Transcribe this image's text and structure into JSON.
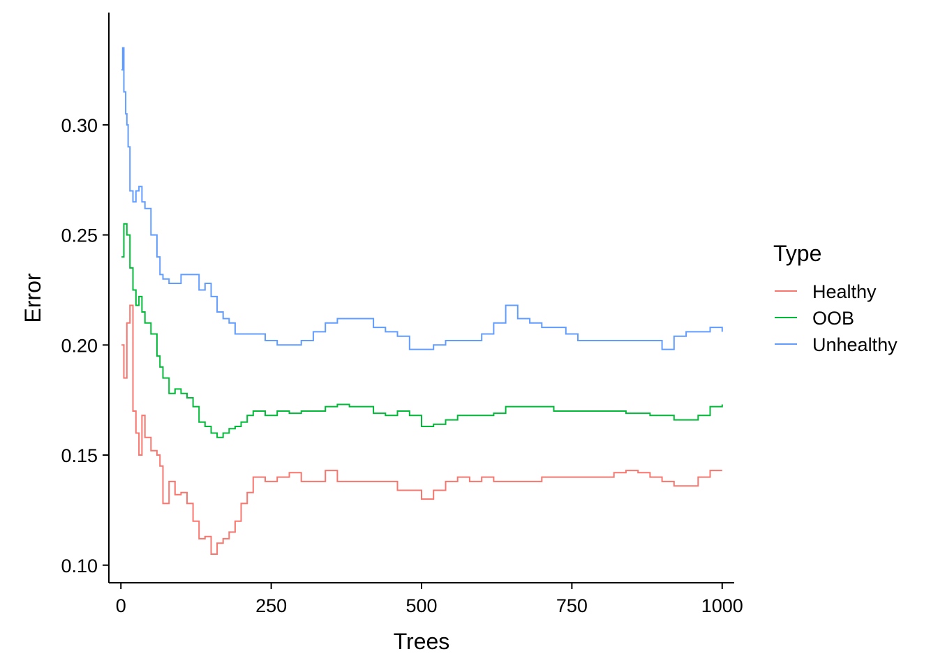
{
  "chart_data": {
    "type": "line",
    "title": "",
    "xlabel": "Trees",
    "ylabel": "Error",
    "xlim": [
      -20,
      1020
    ],
    "ylim": [
      0.092,
      0.351
    ],
    "x_ticks": [
      0,
      250,
      500,
      750,
      1000
    ],
    "x_tick_labels": [
      "0",
      "250",
      "500",
      "750",
      "1000"
    ],
    "y_ticks": [
      0.1,
      0.15,
      0.2,
      0.25,
      0.3
    ],
    "y_tick_labels": [
      "0.10",
      "0.15",
      "0.20",
      "0.25",
      "0.30"
    ],
    "grid": false,
    "legend": {
      "title": "Type",
      "placement": "right",
      "entries": [
        "Healthy",
        "OOB",
        "Unhealthy"
      ]
    },
    "series": [
      {
        "name": "Healthy",
        "color": "#F8766D",
        "x": [
          1,
          5,
          10,
          15,
          20,
          25,
          30,
          35,
          40,
          50,
          60,
          65,
          70,
          80,
          90,
          100,
          110,
          120,
          130,
          140,
          150,
          160,
          170,
          180,
          190,
          200,
          210,
          220,
          240,
          260,
          280,
          300,
          320,
          340,
          360,
          380,
          400,
          420,
          440,
          460,
          480,
          500,
          520,
          540,
          560,
          580,
          600,
          620,
          640,
          660,
          680,
          700,
          720,
          740,
          760,
          780,
          800,
          820,
          840,
          860,
          880,
          900,
          920,
          940,
          960,
          980,
          1000
        ],
        "y": [
          0.2,
          0.185,
          0.21,
          0.218,
          0.17,
          0.16,
          0.15,
          0.168,
          0.158,
          0.152,
          0.15,
          0.145,
          0.128,
          0.138,
          0.132,
          0.133,
          0.128,
          0.12,
          0.112,
          0.113,
          0.105,
          0.11,
          0.112,
          0.115,
          0.12,
          0.128,
          0.133,
          0.14,
          0.138,
          0.14,
          0.142,
          0.138,
          0.138,
          0.143,
          0.138,
          0.138,
          0.138,
          0.138,
          0.138,
          0.134,
          0.134,
          0.13,
          0.134,
          0.138,
          0.14,
          0.138,
          0.14,
          0.138,
          0.138,
          0.138,
          0.138,
          0.14,
          0.14,
          0.14,
          0.14,
          0.14,
          0.14,
          0.142,
          0.143,
          0.142,
          0.14,
          0.138,
          0.136,
          0.136,
          0.14,
          0.143,
          0.143
        ]
      },
      {
        "name": "OOB",
        "color": "#00BA38",
        "x": [
          1,
          5,
          10,
          15,
          20,
          25,
          30,
          35,
          40,
          50,
          60,
          65,
          70,
          80,
          90,
          100,
          110,
          120,
          130,
          140,
          150,
          160,
          170,
          180,
          190,
          200,
          210,
          220,
          240,
          260,
          280,
          300,
          320,
          340,
          360,
          380,
          400,
          420,
          440,
          460,
          480,
          500,
          520,
          540,
          560,
          580,
          600,
          620,
          640,
          660,
          680,
          700,
          720,
          740,
          760,
          780,
          800,
          820,
          840,
          860,
          880,
          900,
          920,
          940,
          960,
          980,
          1000
        ],
        "y": [
          0.24,
          0.255,
          0.25,
          0.235,
          0.225,
          0.218,
          0.222,
          0.215,
          0.21,
          0.205,
          0.195,
          0.19,
          0.185,
          0.178,
          0.18,
          0.178,
          0.176,
          0.172,
          0.165,
          0.163,
          0.16,
          0.158,
          0.16,
          0.162,
          0.163,
          0.165,
          0.168,
          0.17,
          0.168,
          0.17,
          0.169,
          0.17,
          0.17,
          0.172,
          0.173,
          0.172,
          0.172,
          0.169,
          0.168,
          0.17,
          0.168,
          0.163,
          0.164,
          0.166,
          0.168,
          0.168,
          0.168,
          0.169,
          0.172,
          0.172,
          0.172,
          0.172,
          0.17,
          0.17,
          0.17,
          0.17,
          0.17,
          0.17,
          0.169,
          0.169,
          0.168,
          0.168,
          0.166,
          0.166,
          0.168,
          0.172,
          0.173
        ]
      },
      {
        "name": "Unhealthy",
        "color": "#619CFF",
        "x": [
          1,
          3,
          5,
          8,
          10,
          12,
          15,
          20,
          25,
          30,
          35,
          40,
          50,
          60,
          65,
          70,
          80,
          90,
          100,
          110,
          120,
          130,
          140,
          150,
          160,
          170,
          180,
          190,
          200,
          210,
          220,
          240,
          260,
          280,
          300,
          320,
          340,
          360,
          380,
          400,
          420,
          440,
          460,
          480,
          500,
          520,
          540,
          560,
          580,
          600,
          620,
          640,
          660,
          680,
          700,
          720,
          740,
          760,
          780,
          800,
          820,
          840,
          860,
          880,
          900,
          920,
          940,
          960,
          980,
          1000
        ],
        "y": [
          0.325,
          0.335,
          0.315,
          0.305,
          0.3,
          0.29,
          0.27,
          0.265,
          0.27,
          0.272,
          0.265,
          0.262,
          0.25,
          0.24,
          0.232,
          0.23,
          0.228,
          0.228,
          0.232,
          0.232,
          0.232,
          0.225,
          0.228,
          0.222,
          0.215,
          0.212,
          0.21,
          0.205,
          0.205,
          0.205,
          0.205,
          0.202,
          0.2,
          0.2,
          0.202,
          0.206,
          0.21,
          0.212,
          0.212,
          0.212,
          0.208,
          0.206,
          0.204,
          0.198,
          0.198,
          0.2,
          0.202,
          0.202,
          0.202,
          0.205,
          0.21,
          0.218,
          0.212,
          0.21,
          0.208,
          0.208,
          0.205,
          0.202,
          0.202,
          0.202,
          0.202,
          0.202,
          0.202,
          0.202,
          0.198,
          0.204,
          0.206,
          0.206,
          0.208,
          0.206
        ]
      }
    ]
  }
}
